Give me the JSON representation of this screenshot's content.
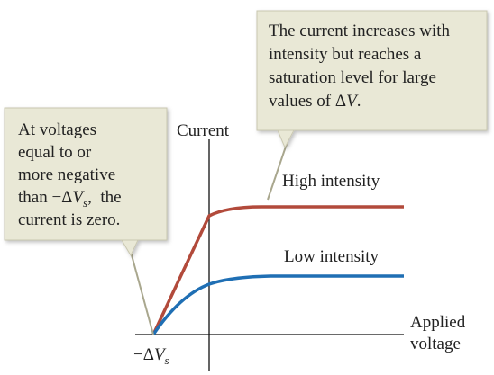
{
  "axes": {
    "y_label": "Current",
    "x_label": [
      "Applied",
      "voltage"
    ],
    "stopping_voltage": {
      "prefix": "−Δ",
      "var": "V",
      "sub": "s"
    }
  },
  "curves": [
    {
      "label": "High intensity",
      "color": "#b24a3b"
    },
    {
      "label": "Low intensity",
      "color": "#1f6fb4"
    }
  ],
  "left_callout": {
    "lines": [
      "At voltages",
      "equal to or",
      "more negative"
    ],
    "line4": {
      "before": "than −Δ",
      "var": "V",
      "sub": "s",
      "after": ",  the"
    },
    "line5": "current is zero."
  },
  "right_callout": {
    "lines": [
      "The current increases with",
      "intensity but reaches a",
      "saturation level for large"
    ],
    "line4": {
      "before": "values of Δ",
      "var": "V",
      "after": "."
    }
  }
}
